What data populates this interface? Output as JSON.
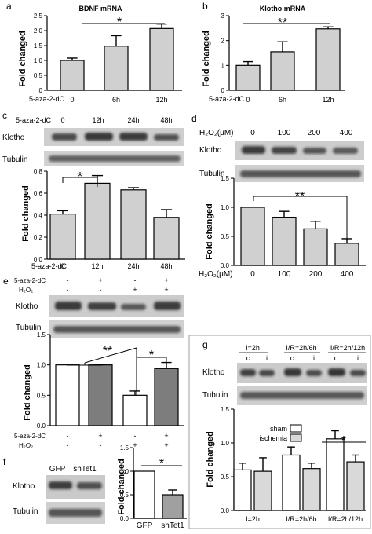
{
  "panels": {
    "a": {
      "letter": "a",
      "title": "BDNF mRNA",
      "ylabel": "Fold changed",
      "treatment": "5-aza-2-dC",
      "sig": "*"
    },
    "b": {
      "letter": "b",
      "title": "Klotho mRNA",
      "ylabel": "Fold changed",
      "treatment": "5-aza-2-dC",
      "sig": "**"
    },
    "c": {
      "letter": "c",
      "treatment": "5-aza-2-dC",
      "lanes": [
        "0",
        "12h",
        "24h",
        "48h"
      ],
      "blots": [
        "Klotho",
        "Tubulin"
      ],
      "ylabel": "Fold changed",
      "sig": "*"
    },
    "d": {
      "letter": "d",
      "treatment": "H₂O₂(μM)",
      "lanes": [
        "0",
        "100",
        "200",
        "400"
      ],
      "blots": [
        "Klotho",
        "Tubulin"
      ],
      "ylabel": "Fold changed",
      "sig": "**"
    },
    "e": {
      "letter": "e",
      "treatment1": "5-aza-2-dC",
      "treatment2": "H₂O₂",
      "blots": [
        "Klotho",
        "Tubulin"
      ],
      "ylabel": "Fold changed",
      "sig1": "**",
      "sig2": "*"
    },
    "f": {
      "letter": "f",
      "lanes": [
        "GFP",
        "shTet1"
      ],
      "blots": [
        "Klotho",
        "Tubulin"
      ],
      "ylabel": "Fold changed",
      "sig": "*"
    },
    "g": {
      "letter": "g",
      "lane_groups": [
        "I=2h",
        "I/R=2h/6h",
        "I/R=2h/12h"
      ],
      "lane_sub": [
        "c",
        "i",
        "c",
        "i",
        "c",
        "i"
      ],
      "blots": [
        "Klotho",
        "Tubulin"
      ],
      "ylabel": "Fold changed",
      "sig": "*"
    }
  },
  "chart_data": [
    {
      "id": "a",
      "type": "bar",
      "title": "BDNF mRNA",
      "ylabel": "Fold changed",
      "xlabel": "5-aza-2-dC",
      "categories": [
        "0",
        "6h",
        "12h"
      ],
      "values": [
        1.0,
        1.48,
        2.07
      ],
      "errors": [
        0.08,
        0.35,
        0.15
      ],
      "ylim": [
        0,
        2.5
      ],
      "yticks": [
        0,
        0.5,
        1.0,
        1.5,
        2.0,
        2.5
      ],
      "ytick_labels": [
        "0",
        "0.5",
        "1.0",
        "1.5",
        "2.0",
        "2.5"
      ]
    },
    {
      "id": "b",
      "type": "bar",
      "title": "Klotho mRNA",
      "ylabel": "Fold changed",
      "xlabel": "5-aza-2-dC",
      "categories": [
        "0",
        "6h",
        "12h"
      ],
      "values": [
        1.0,
        1.55,
        2.47
      ],
      "errors": [
        0.15,
        0.4,
        0.08
      ],
      "ylim": [
        0,
        3
      ],
      "yticks": [
        0,
        1,
        2,
        3
      ],
      "ytick_labels": [
        "0",
        "1",
        "2",
        "3"
      ]
    },
    {
      "id": "c",
      "type": "bar",
      "ylabel": "Fold changed",
      "xlabel": "5-aza-2-dC",
      "categories": [
        "0",
        "12h",
        "24h",
        "48h"
      ],
      "values": [
        0.41,
        0.69,
        0.63,
        0.38
      ],
      "errors": [
        0.03,
        0.07,
        0.02,
        0.07
      ],
      "ylim": [
        0,
        0.8
      ],
      "yticks": [
        0,
        0.2,
        0.4,
        0.6,
        0.8
      ],
      "ytick_labels": [
        "0.0",
        "0.2",
        "0.4",
        "0.6",
        "0.8"
      ]
    },
    {
      "id": "d",
      "type": "bar",
      "ylabel": "Fold changed",
      "xlabel": "H₂O₂(μM)",
      "categories": [
        "0",
        "100",
        "200",
        "400"
      ],
      "values": [
        1.0,
        0.83,
        0.63,
        0.38
      ],
      "errors": [
        0.0,
        0.1,
        0.13,
        0.08
      ],
      "ylim": [
        0,
        1.5
      ],
      "yticks": [
        0,
        0.5,
        1.0,
        1.5
      ],
      "ytick_labels": [
        "0.0",
        "0.5",
        "1.0",
        "1.5"
      ]
    },
    {
      "id": "e",
      "type": "bar",
      "ylabel": "Fold changed",
      "conditions": {
        "5-aza-2-dC": [
          "-",
          "+",
          "-",
          "+"
        ],
        "H₂O₂": [
          "-",
          "-",
          "+",
          "+"
        ]
      },
      "values": [
        1.0,
        1.0,
        0.5,
        0.94
      ],
      "errors": [
        0.0,
        0.01,
        0.07,
        0.1
      ],
      "bar_colors": [
        "#ffffff",
        "#7d7d7d",
        "#ffffff",
        "#7d7d7d"
      ],
      "ylim": [
        0,
        1.5
      ],
      "yticks": [
        0,
        0.5,
        1.0,
        1.5
      ],
      "ytick_labels": [
        "0.0",
        "0.5",
        "1.0",
        "1.5"
      ]
    },
    {
      "id": "f",
      "type": "bar",
      "ylabel": "Fold changed",
      "categories": [
        "GFP",
        "shTet1"
      ],
      "values": [
        1.0,
        0.5
      ],
      "errors": [
        0.0,
        0.1
      ],
      "bar_colors": [
        "#ffffff",
        "#a0a0a0"
      ],
      "ylim": [
        0,
        1.5
      ],
      "yticks": [
        0,
        0.5,
        1.0,
        1.5
      ],
      "ytick_labels": [
        "0.0",
        "0.5",
        "1.0",
        "1.5"
      ]
    },
    {
      "id": "g",
      "type": "bar",
      "ylabel": "Fold changed",
      "categories": [
        "I=2h",
        "I/R=2h/6h",
        "I/R=2h/12h"
      ],
      "series": [
        {
          "name": "sham",
          "values": [
            0.6,
            0.82,
            1.06
          ],
          "errors": [
            0.1,
            0.12,
            0.12
          ],
          "color": "#ffffff"
        },
        {
          "name": "ischemia",
          "values": [
            0.58,
            0.62,
            0.72
          ],
          "errors": [
            0.2,
            0.08,
            0.1
          ],
          "color": "#d9d9d9"
        }
      ],
      "legend": "top-right",
      "ylim": [
        0,
        1.5
      ],
      "yticks": [
        0,
        0.5,
        1.0,
        1.5
      ],
      "ytick_labels": [
        "0.0",
        "0.5",
        "1.0",
        "1.5"
      ]
    }
  ]
}
